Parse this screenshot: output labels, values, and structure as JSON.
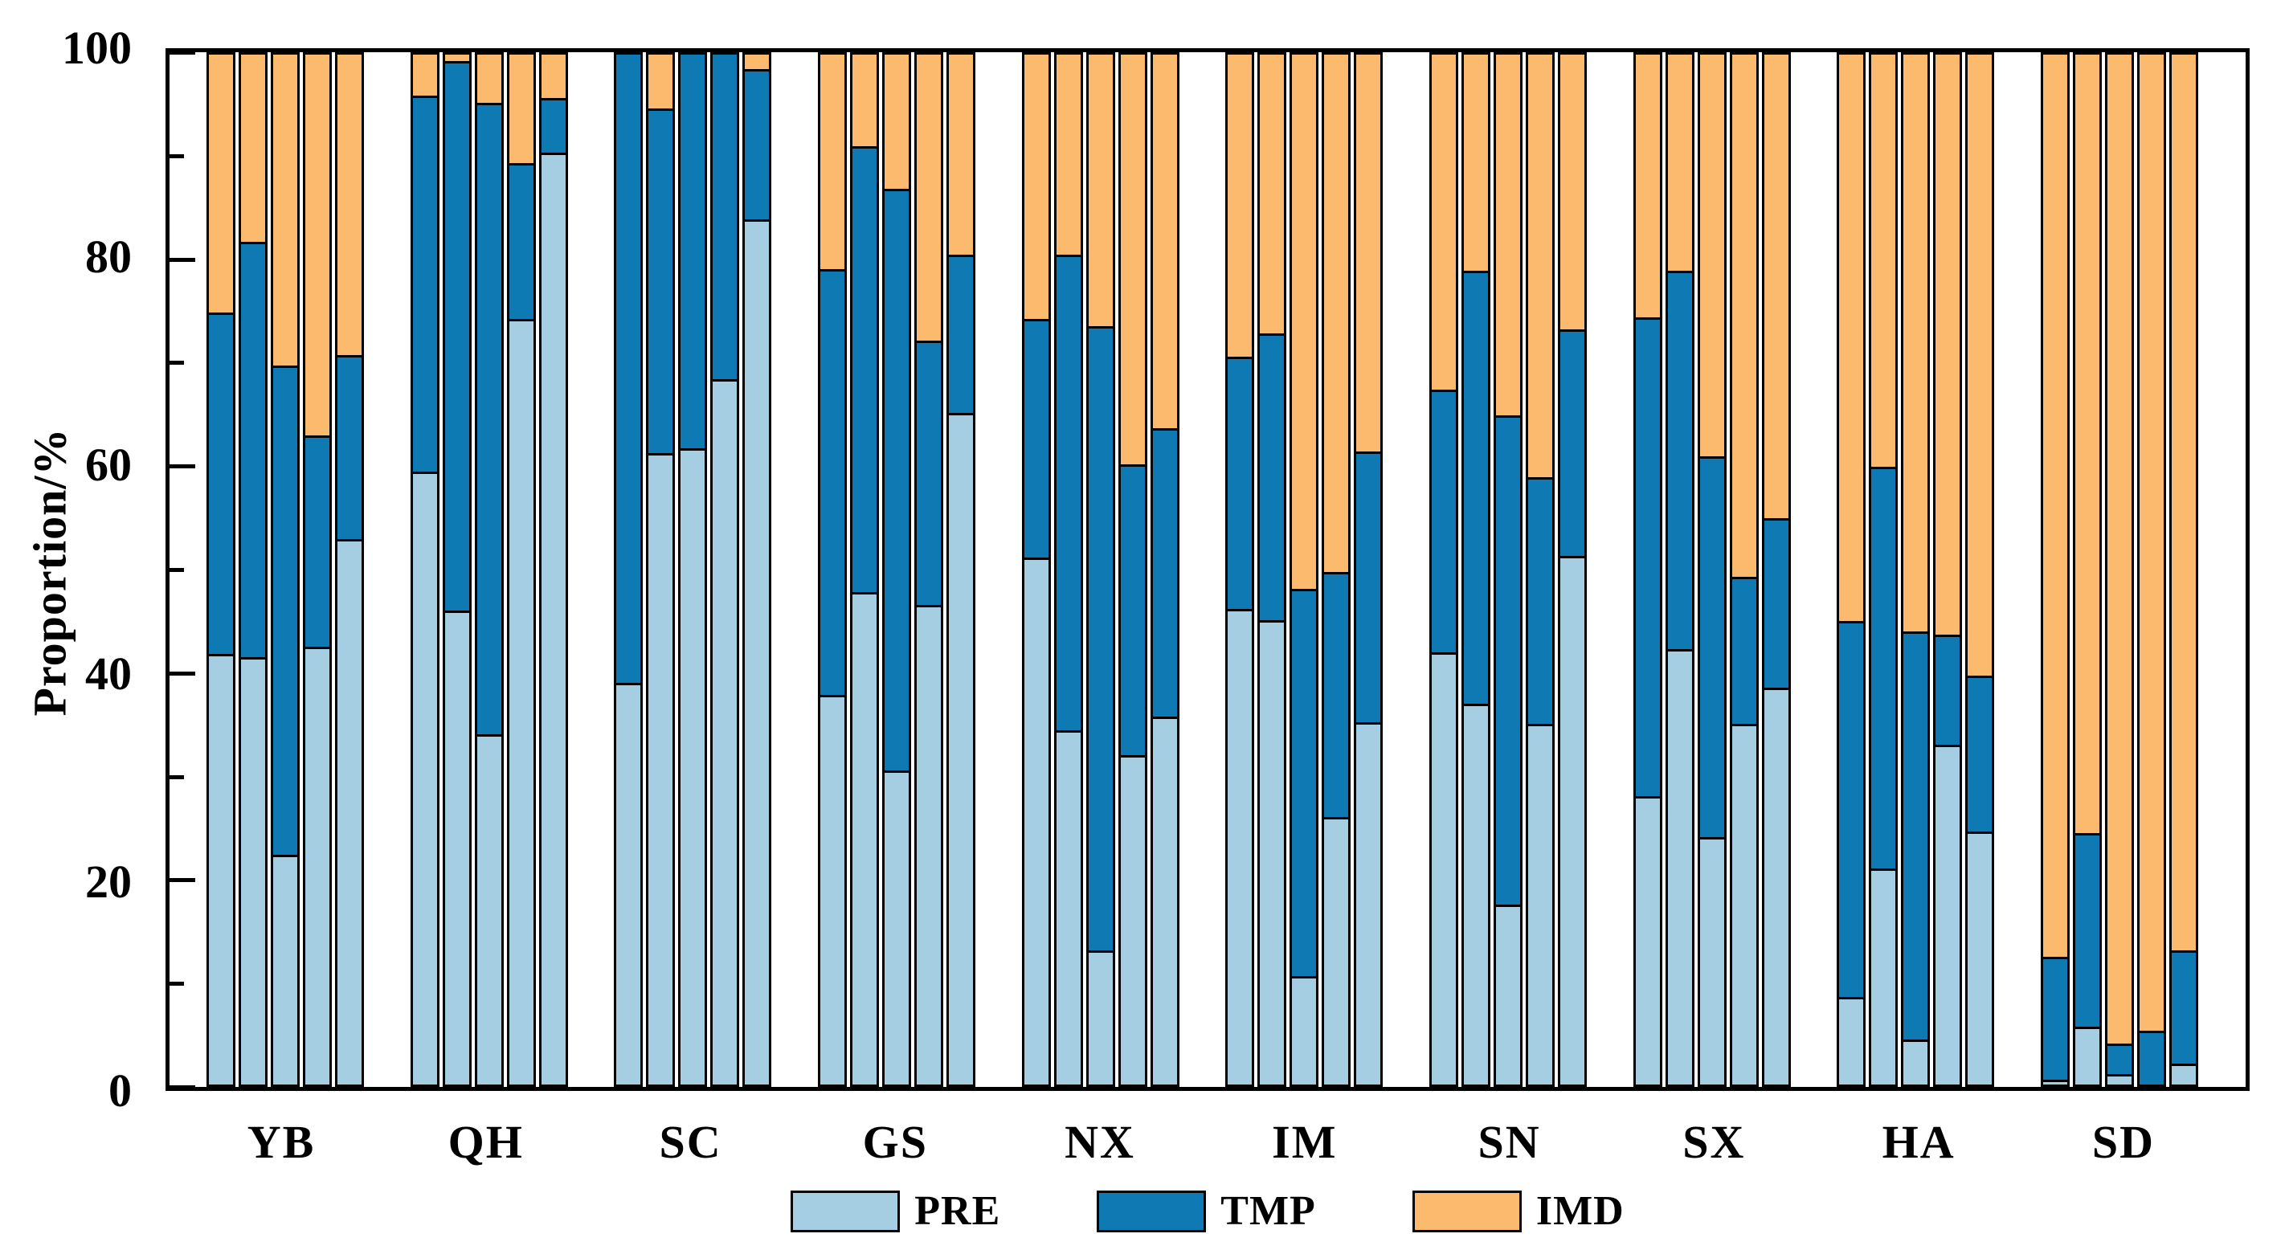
{
  "chart_data": {
    "type": "bar",
    "stacked": true,
    "title": "",
    "xlabel": "",
    "ylabel": "Proportion/%",
    "ylim": [
      0,
      100
    ],
    "yticks_major": [
      0,
      20,
      40,
      60,
      80,
      100
    ],
    "yticks_minor": [
      10,
      30,
      50,
      70,
      90
    ],
    "grid": false,
    "legend_position": "bottom-center",
    "series_keys": [
      "pre",
      "tmp",
      "imd"
    ],
    "legend": {
      "pre": "PRE",
      "tmp": "TMP",
      "imd": "IMD"
    },
    "colors": {
      "pre": "#a6cee3",
      "tmp": "#0f79b4",
      "imd": "#fcba6e",
      "border": "#000000"
    },
    "categories": [
      "YB",
      "QH",
      "SC",
      "GS",
      "NX",
      "IM",
      "SN",
      "SX",
      "HA",
      "SD"
    ],
    "groups": [
      {
        "label": "YB",
        "bars": [
          {
            "pre": 41.8,
            "tmp": 33.2,
            "imd": 25.0
          },
          {
            "pre": 41.5,
            "tmp": 40.3,
            "imd": 18.2
          },
          {
            "pre": 22.3,
            "tmp": 47.5,
            "imd": 30.2
          },
          {
            "pre": 42.5,
            "tmp": 20.5,
            "imd": 37.0
          },
          {
            "pre": 53.0,
            "tmp": 17.8,
            "imd": 29.2
          }
        ]
      },
      {
        "label": "QH",
        "bars": [
          {
            "pre": 59.5,
            "tmp": 36.5,
            "imd": 4.0
          },
          {
            "pre": 46.0,
            "tmp": 53.4,
            "imd": 0.6
          },
          {
            "pre": 34.0,
            "tmp": 61.3,
            "imd": 4.7
          },
          {
            "pre": 74.3,
            "tmp": 15.2,
            "imd": 10.5
          },
          {
            "pre": 90.5,
            "tmp": 5.3,
            "imd": 4.2
          }
        ]
      },
      {
        "label": "SC",
        "bars": [
          {
            "pre": 39.0,
            "tmp": 61.0,
            "imd": 0.0
          },
          {
            "pre": 61.3,
            "tmp": 33.5,
            "imd": 5.2
          },
          {
            "pre": 61.8,
            "tmp": 38.2,
            "imd": 0.0
          },
          {
            "pre": 68.5,
            "tmp": 31.5,
            "imd": 0.0
          },
          {
            "pre": 84.0,
            "tmp": 14.6,
            "imd": 1.4
          }
        ]
      },
      {
        "label": "GS",
        "bars": [
          {
            "pre": 37.8,
            "tmp": 41.4,
            "imd": 20.8
          },
          {
            "pre": 47.8,
            "tmp": 43.3,
            "imd": 8.9
          },
          {
            "pre": 30.5,
            "tmp": 56.5,
            "imd": 13.0
          },
          {
            "pre": 46.6,
            "tmp": 25.6,
            "imd": 27.8
          },
          {
            "pre": 65.2,
            "tmp": 15.4,
            "imd": 19.4
          }
        ]
      },
      {
        "label": "NX",
        "bars": [
          {
            "pre": 51.2,
            "tmp": 23.1,
            "imd": 25.7
          },
          {
            "pre": 34.4,
            "tmp": 46.2,
            "imd": 19.4
          },
          {
            "pre": 13.0,
            "tmp": 60.6,
            "imd": 26.4
          },
          {
            "pre": 32.0,
            "tmp": 28.2,
            "imd": 39.8
          },
          {
            "pre": 35.7,
            "tmp": 28.0,
            "imd": 36.3
          }
        ]
      },
      {
        "label": "IM",
        "bars": [
          {
            "pre": 46.2,
            "tmp": 24.5,
            "imd": 29.3
          },
          {
            "pre": 45.1,
            "tmp": 27.8,
            "imd": 27.1
          },
          {
            "pre": 10.5,
            "tmp": 37.6,
            "imd": 51.9
          },
          {
            "pre": 26.0,
            "tmp": 23.8,
            "imd": 50.2
          },
          {
            "pre": 35.2,
            "tmp": 26.3,
            "imd": 38.5
          }
        ]
      },
      {
        "label": "SN",
        "bars": [
          {
            "pre": 42.0,
            "tmp": 25.5,
            "imd": 32.5
          },
          {
            "pre": 37.0,
            "tmp": 42.0,
            "imd": 21.0
          },
          {
            "pre": 17.5,
            "tmp": 47.5,
            "imd": 35.0
          },
          {
            "pre": 35.0,
            "tmp": 24.0,
            "imd": 41.0
          },
          {
            "pre": 51.3,
            "tmp": 22.0,
            "imd": 26.7
          }
        ]
      },
      {
        "label": "SX",
        "bars": [
          {
            "pre": 28.0,
            "tmp": 46.5,
            "imd": 25.5
          },
          {
            "pre": 42.3,
            "tmp": 36.7,
            "imd": 21.0
          },
          {
            "pre": 24.0,
            "tmp": 37.0,
            "imd": 39.0
          },
          {
            "pre": 35.0,
            "tmp": 14.3,
            "imd": 50.7
          },
          {
            "pre": 38.5,
            "tmp": 16.5,
            "imd": 45.0
          }
        ]
      },
      {
        "label": "HA",
        "bars": [
          {
            "pre": 8.5,
            "tmp": 36.5,
            "imd": 55.0
          },
          {
            "pre": 21.0,
            "tmp": 39.0,
            "imd": 40.0
          },
          {
            "pre": 4.4,
            "tmp": 39.6,
            "imd": 56.0
          },
          {
            "pre": 33.0,
            "tmp": 10.7,
            "imd": 56.3
          },
          {
            "pre": 24.6,
            "tmp": 15.1,
            "imd": 60.3
          }
        ]
      },
      {
        "label": "SD",
        "bars": [
          {
            "pre": 0.5,
            "tmp": 11.9,
            "imd": 87.6
          },
          {
            "pre": 5.6,
            "tmp": 18.8,
            "imd": 75.6
          },
          {
            "pre": 1.0,
            "tmp": 3.0,
            "imd": 96.0
          },
          {
            "pre": 0.0,
            "tmp": 5.2,
            "imd": 94.8
          },
          {
            "pre": 2.0,
            "tmp": 11.0,
            "imd": 87.0
          }
        ]
      }
    ]
  }
}
